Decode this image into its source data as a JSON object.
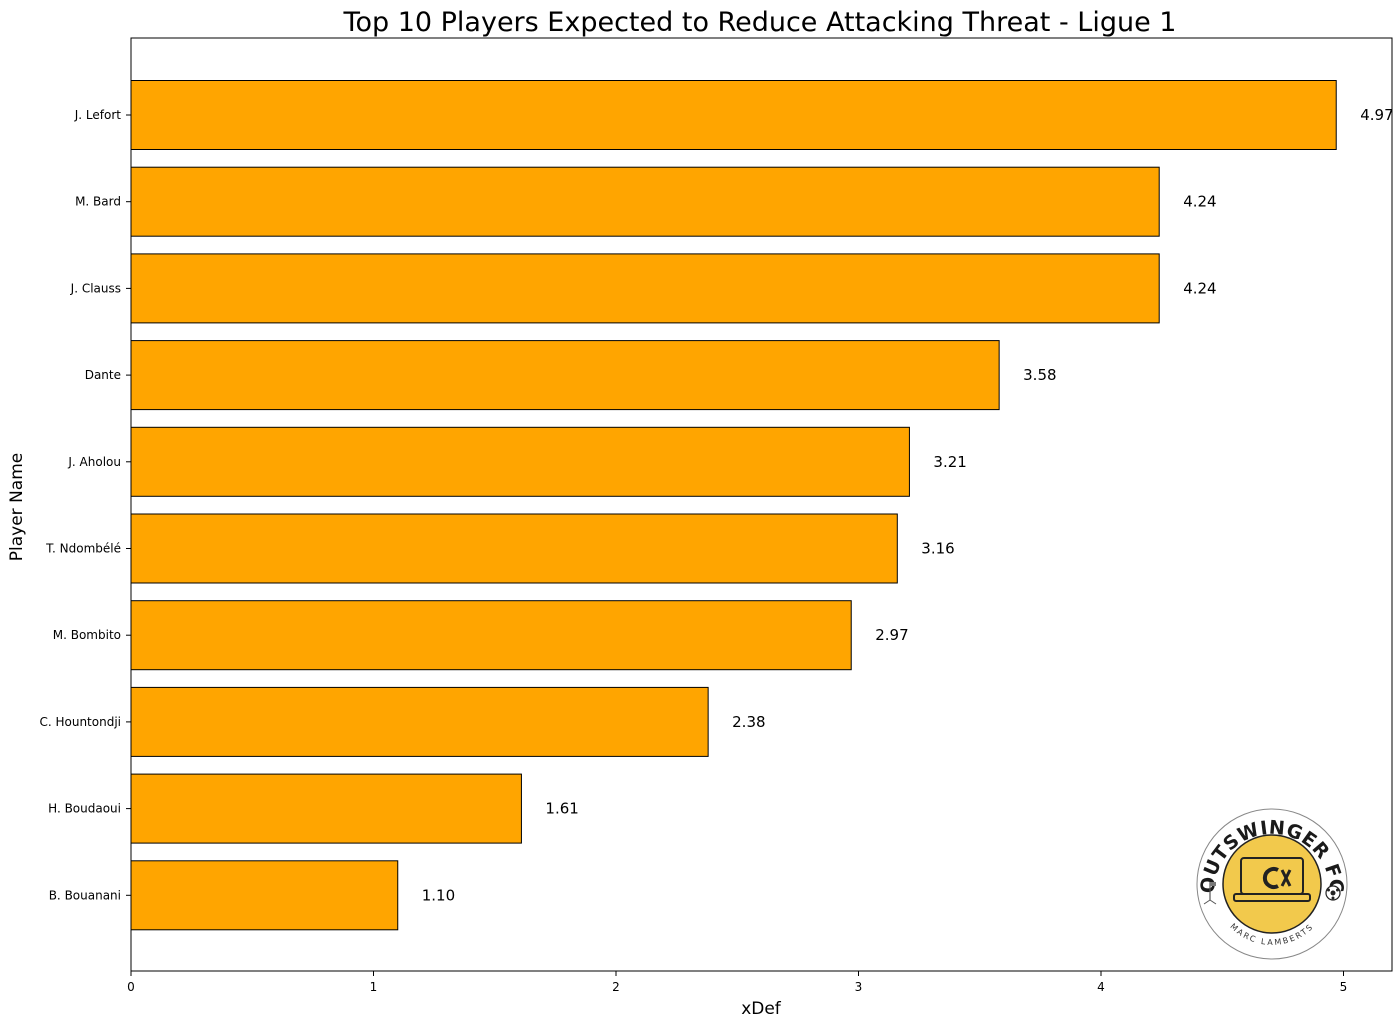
{
  "chart_data": {
    "type": "bar",
    "orientation": "horizontal",
    "title": "Top 10 Players Expected to Reduce Attacking Threat - Ligue 1",
    "xlabel": "xDef",
    "ylabel": "Player Name",
    "xlim": [
      0,
      5.2
    ],
    "xticks": [
      0,
      1,
      2,
      3,
      4,
      5
    ],
    "grid": false,
    "bar_color": "#FFA500",
    "bar_edge_color": "#000000",
    "categories": [
      "J. Lefort",
      "M. Bard",
      "J. Clauss",
      "Dante",
      "J. Aholou",
      "T. Ndombélé",
      "M. Bombito",
      "C. Hountondji",
      "H. Boudaoui",
      "B. Bouanani"
    ],
    "values": [
      4.97,
      4.24,
      4.24,
      3.58,
      3.21,
      3.16,
      2.97,
      2.38,
      1.61,
      1.1
    ],
    "value_labels": [
      "4.97",
      "4.24",
      "4.24",
      "3.58",
      "3.21",
      "3.16",
      "2.97",
      "2.38",
      "1.61",
      "1.10"
    ]
  },
  "logo": {
    "name": "OUTSWINGER FC",
    "author": "MARC LAMBERTS",
    "accent": "#F2C94C"
  }
}
